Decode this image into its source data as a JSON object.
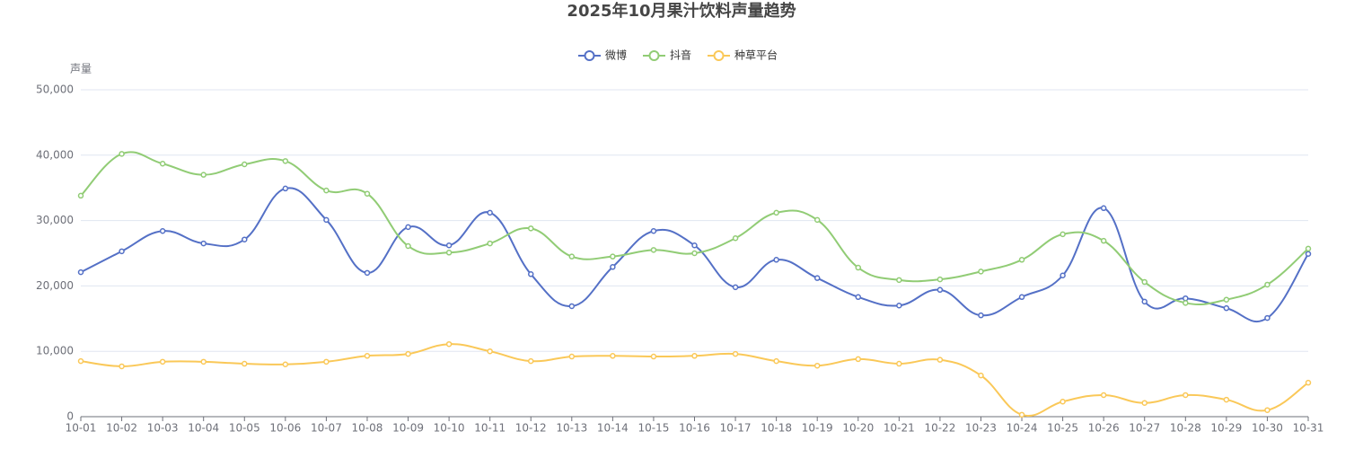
{
  "chart_data": {
    "type": "line",
    "title": "2025年10月果汁饮料声量趋势",
    "y_label": "声量",
    "categories": [
      "10-01",
      "10-02",
      "10-03",
      "10-04",
      "10-05",
      "10-06",
      "10-07",
      "10-08",
      "10-09",
      "10-10",
      "10-11",
      "10-12",
      "10-13",
      "10-14",
      "10-15",
      "10-16",
      "10-17",
      "10-18",
      "10-19",
      "10-20",
      "10-21",
      "10-22",
      "10-23",
      "10-24",
      "10-25",
      "10-26",
      "10-27",
      "10-28",
      "10-29",
      "10-30",
      "10-31"
    ],
    "series": [
      {
        "name": "微博",
        "color": "#5470c6",
        "values": [
          22100,
          25300,
          28400,
          26500,
          27100,
          34900,
          30100,
          22000,
          29000,
          26200,
          31200,
          21800,
          16900,
          22900,
          28400,
          26200,
          19800,
          24000,
          21200,
          18300,
          17000,
          19400,
          15500,
          18300,
          21600,
          31900,
          17600,
          18100,
          16600,
          15100,
          24900
        ]
      },
      {
        "name": "抖音",
        "color": "#91cc75",
        "values": [
          33800,
          40200,
          38700,
          37000,
          38600,
          39100,
          34600,
          34100,
          26100,
          25100,
          26500,
          28800,
          24500,
          24500,
          25500,
          25000,
          27300,
          31200,
          30100,
          22800,
          20900,
          21000,
          22200,
          24000,
          27900,
          26900,
          20600,
          17400,
          17900,
          20200,
          25700
        ]
      },
      {
        "name": "种草平台",
        "color": "#fac858",
        "values": [
          8500,
          7700,
          8400,
          8400,
          8100,
          8000,
          8400,
          9300,
          9600,
          11100,
          10000,
          8500,
          9200,
          9300,
          9200,
          9300,
          9600,
          8500,
          7800,
          8800,
          8100,
          8700,
          6300,
          300,
          2300,
          3300,
          2100,
          3300,
          2600,
          1000,
          5200
        ]
      }
    ],
    "ylim": [
      0,
      50000
    ],
    "yticks": [
      0,
      {
        "value": 10000,
        "label": "10,000"
      },
      {
        "value": 20000,
        "label": "20,000"
      },
      {
        "value": 30000,
        "label": "30,000"
      },
      {
        "value": 40000,
        "label": "40,000"
      },
      {
        "value": 50000,
        "label": "50,000"
      }
    ],
    "grid": true,
    "smooth": true,
    "legend": "top"
  }
}
